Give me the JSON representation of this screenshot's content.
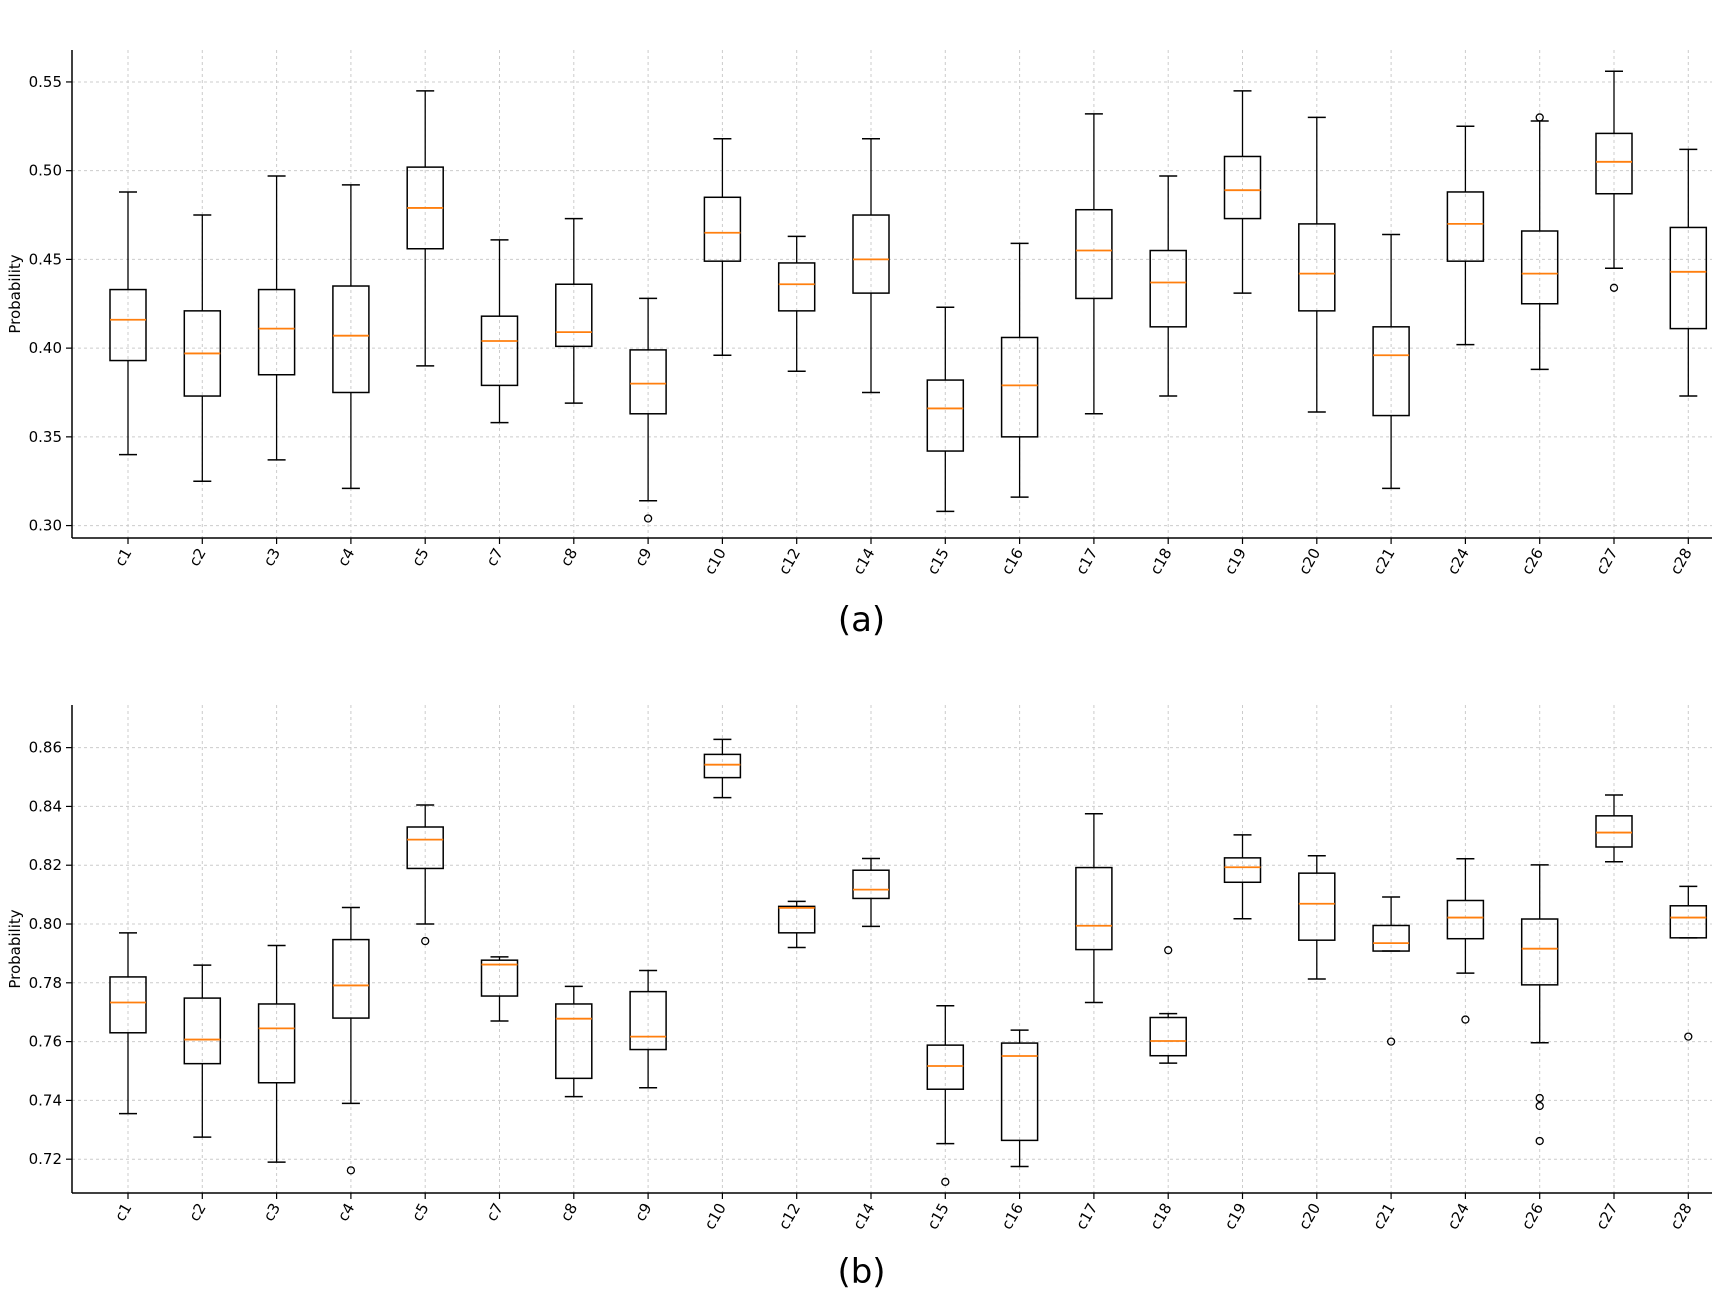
{
  "chart_data": [
    {
      "type": "box",
      "caption": "(a)",
      "title": "",
      "xlabel": "",
      "ylabel": "Probability",
      "ylim": [
        0.293,
        0.568
      ],
      "yticks": [
        0.3,
        0.35,
        0.4,
        0.45,
        0.5,
        0.55
      ],
      "ytick_labels": [
        "0.30",
        "0.35",
        "0.40",
        "0.45",
        "0.50",
        "0.55"
      ],
      "grid": true,
      "colors": {
        "box": "#000000",
        "median": "#ff7f0e",
        "grid": "#cccccc"
      },
      "categories": [
        "c1",
        "c2",
        "c3",
        "c4",
        "c5",
        "c7",
        "c8",
        "c9",
        "c10",
        "c12",
        "c14",
        "c15",
        "c16",
        "c17",
        "c18",
        "c19",
        "c20",
        "c21",
        "c24",
        "c26",
        "c27",
        "c28"
      ],
      "boxes": [
        {
          "whislo": 0.34,
          "q1": 0.393,
          "med": 0.416,
          "q3": 0.433,
          "whishi": 0.488,
          "fliers": []
        },
        {
          "whislo": 0.325,
          "q1": 0.373,
          "med": 0.397,
          "q3": 0.421,
          "whishi": 0.475,
          "fliers": []
        },
        {
          "whislo": 0.337,
          "q1": 0.385,
          "med": 0.411,
          "q3": 0.433,
          "whishi": 0.497,
          "fliers": []
        },
        {
          "whislo": 0.321,
          "q1": 0.375,
          "med": 0.407,
          "q3": 0.435,
          "whishi": 0.492,
          "fliers": []
        },
        {
          "whislo": 0.39,
          "q1": 0.456,
          "med": 0.479,
          "q3": 0.502,
          "whishi": 0.545,
          "fliers": []
        },
        {
          "whislo": 0.358,
          "q1": 0.379,
          "med": 0.404,
          "q3": 0.418,
          "whishi": 0.461,
          "fliers": []
        },
        {
          "whislo": 0.369,
          "q1": 0.401,
          "med": 0.409,
          "q3": 0.436,
          "whishi": 0.473,
          "fliers": []
        },
        {
          "whislo": 0.314,
          "q1": 0.363,
          "med": 0.38,
          "q3": 0.399,
          "whishi": 0.428,
          "fliers": [
            0.304
          ]
        },
        {
          "whislo": 0.396,
          "q1": 0.449,
          "med": 0.465,
          "q3": 0.485,
          "whishi": 0.518,
          "fliers": []
        },
        {
          "whislo": 0.387,
          "q1": 0.421,
          "med": 0.436,
          "q3": 0.448,
          "whishi": 0.463,
          "fliers": []
        },
        {
          "whislo": 0.375,
          "q1": 0.431,
          "med": 0.45,
          "q3": 0.475,
          "whishi": 0.518,
          "fliers": []
        },
        {
          "whislo": 0.308,
          "q1": 0.342,
          "med": 0.366,
          "q3": 0.382,
          "whishi": 0.423,
          "fliers": []
        },
        {
          "whislo": 0.316,
          "q1": 0.35,
          "med": 0.379,
          "q3": 0.406,
          "whishi": 0.459,
          "fliers": []
        },
        {
          "whislo": 0.363,
          "q1": 0.428,
          "med": 0.455,
          "q3": 0.478,
          "whishi": 0.532,
          "fliers": []
        },
        {
          "whislo": 0.373,
          "q1": 0.412,
          "med": 0.437,
          "q3": 0.455,
          "whishi": 0.497,
          "fliers": []
        },
        {
          "whislo": 0.431,
          "q1": 0.473,
          "med": 0.489,
          "q3": 0.508,
          "whishi": 0.545,
          "fliers": []
        },
        {
          "whislo": 0.364,
          "q1": 0.421,
          "med": 0.442,
          "q3": 0.47,
          "whishi": 0.53,
          "fliers": []
        },
        {
          "whislo": 0.321,
          "q1": 0.362,
          "med": 0.396,
          "q3": 0.412,
          "whishi": 0.464,
          "fliers": []
        },
        {
          "whislo": 0.402,
          "q1": 0.449,
          "med": 0.47,
          "q3": 0.488,
          "whishi": 0.525,
          "fliers": []
        },
        {
          "whislo": 0.388,
          "q1": 0.425,
          "med": 0.442,
          "q3": 0.466,
          "whishi": 0.528,
          "fliers": [
            0.53
          ]
        },
        {
          "whislo": 0.445,
          "q1": 0.487,
          "med": 0.505,
          "q3": 0.521,
          "whishi": 0.556,
          "fliers": [
            0.434
          ]
        },
        {
          "whislo": 0.373,
          "q1": 0.411,
          "med": 0.443,
          "q3": 0.468,
          "whishi": 0.512,
          "fliers": []
        }
      ]
    },
    {
      "type": "box",
      "caption": "(b)",
      "title": "",
      "xlabel": "",
      "ylabel": "Probability",
      "ylim": [
        0.7085,
        0.8745
      ],
      "yticks": [
        0.72,
        0.74,
        0.76,
        0.78,
        0.8,
        0.82,
        0.84,
        0.86
      ],
      "ytick_labels": [
        "0.72",
        "0.74",
        "0.76",
        "0.78",
        "0.80",
        "0.82",
        "0.84",
        "0.86"
      ],
      "grid": true,
      "colors": {
        "box": "#000000",
        "median": "#ff7f0e",
        "grid": "#cccccc"
      },
      "categories": [
        "c1",
        "c2",
        "c3",
        "c4",
        "c5",
        "c7",
        "c8",
        "c9",
        "c10",
        "c12",
        "c14",
        "c15",
        "c16",
        "c17",
        "c18",
        "c19",
        "c20",
        "c21",
        "c24",
        "c26",
        "c27",
        "c28"
      ],
      "boxes": [
        {
          "whislo": 0.7355,
          "q1": 0.763,
          "med": 0.7733,
          "q3": 0.782,
          "whishi": 0.797,
          "fliers": []
        },
        {
          "whislo": 0.7275,
          "q1": 0.7525,
          "med": 0.7607,
          "q3": 0.7748,
          "whishi": 0.786,
          "fliers": []
        },
        {
          "whislo": 0.719,
          "q1": 0.746,
          "med": 0.7645,
          "q3": 0.7728,
          "whishi": 0.7927,
          "fliers": []
        },
        {
          "whislo": 0.739,
          "q1": 0.768,
          "med": 0.7791,
          "q3": 0.7947,
          "whishi": 0.8056,
          "fliers": [
            0.7162
          ]
        },
        {
          "whislo": 0.8,
          "q1": 0.8189,
          "med": 0.8287,
          "q3": 0.833,
          "whishi": 0.8405,
          "fliers": [
            0.7942
          ]
        },
        {
          "whislo": 0.767,
          "q1": 0.7755,
          "med": 0.7862,
          "q3": 0.7877,
          "whishi": 0.7888,
          "fliers": []
        },
        {
          "whislo": 0.7413,
          "q1": 0.7475,
          "med": 0.7678,
          "q3": 0.7728,
          "whishi": 0.7788,
          "fliers": []
        },
        {
          "whislo": 0.7443,
          "q1": 0.7573,
          "med": 0.7617,
          "q3": 0.777,
          "whishi": 0.7842,
          "fliers": []
        },
        {
          "whislo": 0.843,
          "q1": 0.8498,
          "med": 0.8542,
          "q3": 0.8577,
          "whishi": 0.8628,
          "fliers": []
        },
        {
          "whislo": 0.792,
          "q1": 0.797,
          "med": 0.8055,
          "q3": 0.806,
          "whishi": 0.8077,
          "fliers": []
        },
        {
          "whislo": 0.7992,
          "q1": 0.8087,
          "med": 0.8117,
          "q3": 0.8183,
          "whishi": 0.8223,
          "fliers": []
        },
        {
          "whislo": 0.7253,
          "q1": 0.7438,
          "med": 0.7517,
          "q3": 0.7588,
          "whishi": 0.7722,
          "fliers": [
            0.7123
          ]
        },
        {
          "whislo": 0.7175,
          "q1": 0.7264,
          "med": 0.7551,
          "q3": 0.7595,
          "whishi": 0.7639,
          "fliers": []
        },
        {
          "whislo": 0.7733,
          "q1": 0.7913,
          "med": 0.7994,
          "q3": 0.8192,
          "whishi": 0.8375,
          "fliers": []
        },
        {
          "whislo": 0.7527,
          "q1": 0.7552,
          "med": 0.7602,
          "q3": 0.7682,
          "whishi": 0.7695,
          "fliers": [
            0.7911
          ]
        },
        {
          "whislo": 0.8018,
          "q1": 0.8142,
          "med": 0.8193,
          "q3": 0.8225,
          "whishi": 0.8303,
          "fliers": []
        },
        {
          "whislo": 0.7813,
          "q1": 0.7945,
          "med": 0.8069,
          "q3": 0.8173,
          "whishi": 0.8232,
          "fliers": []
        },
        {
          "whislo": 0.7908,
          "q1": 0.7908,
          "med": 0.7935,
          "q3": 0.7995,
          "whishi": 0.8092,
          "fliers": [
            0.76
          ]
        },
        {
          "whislo": 0.7833,
          "q1": 0.795,
          "med": 0.8022,
          "q3": 0.808,
          "whishi": 0.8222,
          "fliers": [
            0.7675
          ]
        },
        {
          "whislo": 0.7596,
          "q1": 0.7793,
          "med": 0.7916,
          "q3": 0.8017,
          "whishi": 0.8201,
          "fliers": [
            0.7408,
            0.7381,
            0.7262
          ]
        },
        {
          "whislo": 0.8212,
          "q1": 0.8262,
          "med": 0.8311,
          "q3": 0.8368,
          "whishi": 0.8439,
          "fliers": []
        },
        {
          "whislo": 0.7953,
          "q1": 0.7953,
          "med": 0.8022,
          "q3": 0.8062,
          "whishi": 0.8128,
          "fliers": [
            0.7617
          ]
        }
      ]
    }
  ]
}
